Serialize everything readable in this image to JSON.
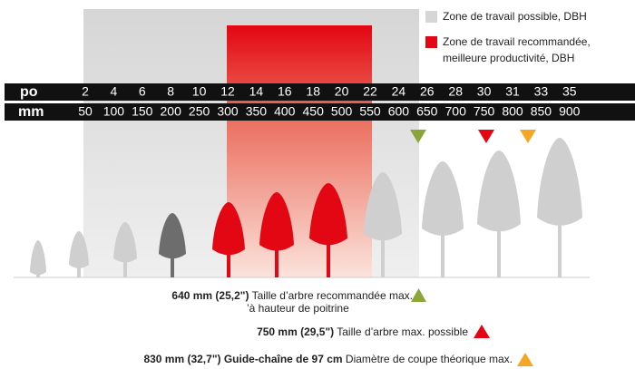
{
  "legend": {
    "items": [
      {
        "lines": [
          "Zone de travail possible, DBH"
        ]
      },
      {
        "lines": [
          "Zone de travail recommandée,",
          "meilleure productivité, DBH"
        ]
      }
    ]
  },
  "scale": {
    "inch_label": "po",
    "inches": [
      2,
      4,
      6,
      8,
      10,
      12,
      14,
      16,
      18,
      20,
      22,
      24,
      26,
      28,
      30,
      31,
      33,
      35
    ],
    "mm_label": "mm",
    "mm": [
      50,
      100,
      150,
      200,
      250,
      300,
      350,
      400,
      450,
      500,
      550,
      600,
      650,
      700,
      750,
      800,
      850,
      900
    ]
  },
  "notes": [
    {
      "bold": "640 mm (25,2\")",
      "text": " Taille d’arbre recommandée max.",
      "text2": "’à hauteur de poitrine"
    },
    {
      "bold": "750 mm (29,5\")",
      "text": " Taille d’arbre max. possible"
    },
    {
      "bold": "830 mm (32,7\") Guide-chaîne de 97 cm",
      "text": " Diamètre de coupe théorique max."
    }
  ]
}
